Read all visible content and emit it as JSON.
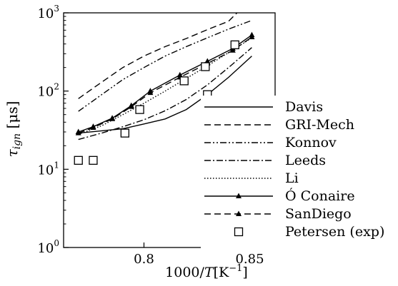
{
  "chart_data": {
    "type": "line",
    "title": "",
    "xlabel": "1000/T[K⁻¹]",
    "ylabel": "τ_ign [μs]",
    "yscale": "log",
    "xlim": [
      0.762,
      0.862
    ],
    "ylim": [
      1,
      1000
    ],
    "grid": false,
    "legend_position": "right",
    "x_ticks": [
      {
        "value": 0.8,
        "label": "0.8"
      },
      {
        "value": 0.85,
        "label": "0.85"
      }
    ],
    "y_ticks": [
      {
        "value": 1,
        "base": "10",
        "exp": "0"
      },
      {
        "value": 10,
        "base": "10",
        "exp": "1"
      },
      {
        "value": 100,
        "base": "10",
        "exp": "2"
      },
      {
        "value": 1000,
        "base": "10",
        "exp": "3"
      }
    ],
    "series": [
      {
        "name": "Davis",
        "style": "solid",
        "marker": "none",
        "points": [
          [
            0.769,
            29
          ],
          [
            0.78,
            31
          ],
          [
            0.79,
            33
          ],
          [
            0.8,
            38
          ],
          [
            0.81,
            44
          ],
          [
            0.82,
            58
          ],
          [
            0.83,
            90
          ],
          [
            0.84,
            150
          ],
          [
            0.851,
            280
          ]
        ]
      },
      {
        "name": "GRI-Mech",
        "style": "dashed",
        "marker": "none",
        "points": [
          [
            0.769,
            80
          ],
          [
            0.78,
            130
          ],
          [
            0.79,
            200
          ],
          [
            0.8,
            280
          ],
          [
            0.81,
            370
          ],
          [
            0.82,
            470
          ],
          [
            0.83,
            610
          ],
          [
            0.84,
            780
          ],
          [
            0.844,
            1000
          ]
        ]
      },
      {
        "name": "Konnov",
        "style": "dashdotdot",
        "marker": "none",
        "points": [
          [
            0.769,
            55
          ],
          [
            0.78,
            90
          ],
          [
            0.79,
            140
          ],
          [
            0.8,
            200
          ],
          [
            0.81,
            280
          ],
          [
            0.82,
            370
          ],
          [
            0.83,
            480
          ],
          [
            0.84,
            620
          ],
          [
            0.851,
            800
          ]
        ]
      },
      {
        "name": "Leeds",
        "style": "dashdot",
        "marker": "none",
        "points": [
          [
            0.769,
            24
          ],
          [
            0.78,
            29
          ],
          [
            0.79,
            35
          ],
          [
            0.8,
            43
          ],
          [
            0.81,
            56
          ],
          [
            0.82,
            78
          ],
          [
            0.83,
            120
          ],
          [
            0.84,
            200
          ],
          [
            0.851,
            360
          ]
        ]
      },
      {
        "name": "Li",
        "style": "dotted",
        "marker": "none",
        "points": [
          [
            0.769,
            28
          ],
          [
            0.78,
            36
          ],
          [
            0.79,
            50
          ],
          [
            0.8,
            70
          ],
          [
            0.81,
            100
          ],
          [
            0.82,
            145
          ],
          [
            0.83,
            210
          ],
          [
            0.84,
            310
          ],
          [
            0.851,
            480
          ]
        ]
      },
      {
        "name": "Ó Conaire",
        "style": "solid",
        "marker": "triangle",
        "points": [
          [
            0.769,
            30
          ],
          [
            0.776,
            35
          ],
          [
            0.785,
            45
          ],
          [
            0.794,
            65
          ],
          [
            0.803,
            100
          ],
          [
            0.817,
            160
          ],
          [
            0.83,
            240
          ],
          [
            0.842,
            350
          ],
          [
            0.851,
            520
          ]
        ]
      },
      {
        "name": "SanDiego",
        "style": "dashed",
        "marker": "triangle",
        "points": [
          [
            0.769,
            29
          ],
          [
            0.776,
            34
          ],
          [
            0.785,
            44
          ],
          [
            0.794,
            63
          ],
          [
            0.803,
            95
          ],
          [
            0.817,
            150
          ],
          [
            0.83,
            225
          ],
          [
            0.842,
            330
          ],
          [
            0.851,
            490
          ]
        ]
      },
      {
        "name": "Petersen (exp)",
        "style": "none",
        "marker": "square",
        "points": [
          [
            0.769,
            13
          ],
          [
            0.776,
            13
          ],
          [
            0.791,
            29
          ],
          [
            0.798,
            58
          ],
          [
            0.819,
            135
          ],
          [
            0.83,
            90
          ],
          [
            0.829,
            205
          ],
          [
            0.843,
            390
          ]
        ]
      }
    ]
  }
}
